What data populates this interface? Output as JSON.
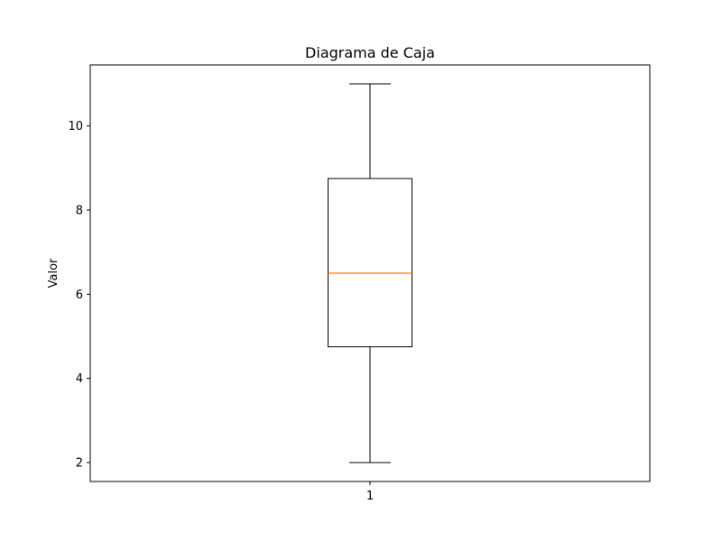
{
  "chart_data": {
    "type": "box",
    "title": "Diagrama de Caja",
    "xlabel": "",
    "ylabel": "Valor",
    "categories": [
      "1"
    ],
    "boxes": [
      {
        "category": "1",
        "whisker_low": 2,
        "q1": 4.75,
        "median": 6.5,
        "q3": 8.75,
        "whisker_high": 11
      }
    ],
    "yticks": [
      2,
      4,
      6,
      8,
      10
    ],
    "ylim": [
      1.55,
      11.45
    ],
    "grid": false,
    "colors": {
      "box": "#000000",
      "median": "#ff7f0e",
      "axes": "#000000"
    }
  }
}
